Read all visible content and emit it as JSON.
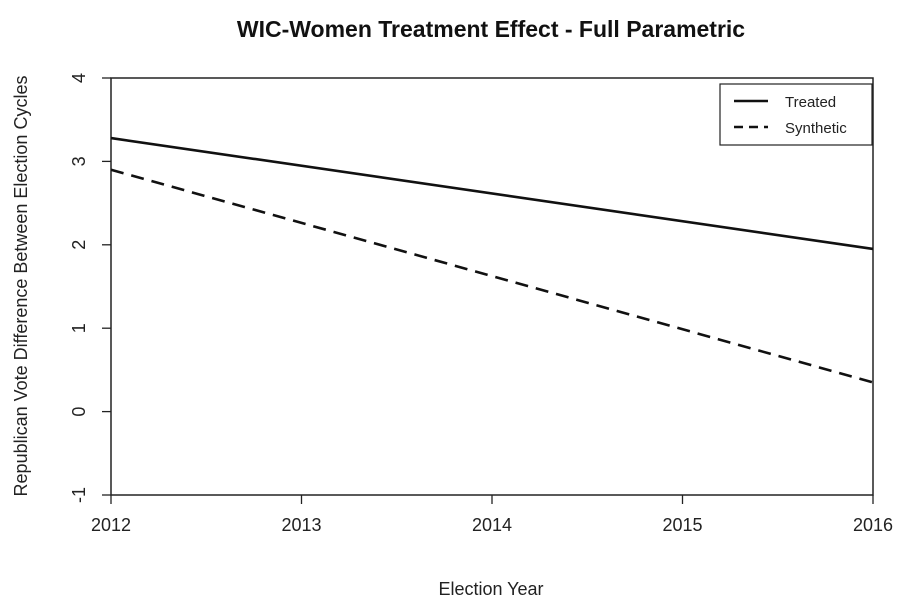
{
  "chart_data": {
    "type": "line",
    "title": "WIC-Women Treatment Effect - Full Parametric",
    "xlabel": "Election Year",
    "ylabel": "Republican Vote Difference Between Election Cycles",
    "x": [
      2012,
      2016
    ],
    "xlim": [
      2012,
      2016
    ],
    "ylim": [
      -1,
      4
    ],
    "xticks": [
      "2012",
      "2013",
      "2014",
      "2015",
      "2016"
    ],
    "yticks": [
      "-1",
      "0",
      "1",
      "2",
      "3",
      "4"
    ],
    "series": [
      {
        "name": "Treated",
        "values": [
          3.28,
          1.95
        ],
        "style": "solid",
        "color": "#111111"
      },
      {
        "name": "Synthetic",
        "values": [
          2.9,
          0.35
        ],
        "style": "dashed",
        "color": "#111111"
      }
    ],
    "legend_position": "top-right",
    "grid": false
  }
}
